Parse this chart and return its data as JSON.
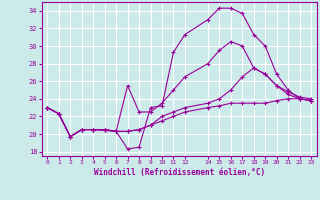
{
  "xlabel": "Windchill (Refroidissement éolien,°C)",
  "bg_color": "#cceaea",
  "grid_color": "#ffffff",
  "line_color": "#990099",
  "xlim": [
    -0.5,
    23.5
  ],
  "ylim": [
    17.5,
    35.0
  ],
  "xticks": [
    0,
    1,
    2,
    3,
    4,
    5,
    6,
    7,
    8,
    9,
    10,
    11,
    12,
    14,
    15,
    16,
    17,
    18,
    19,
    20,
    21,
    22,
    23
  ],
  "yticks": [
    18,
    20,
    22,
    24,
    26,
    28,
    30,
    32,
    34
  ],
  "curve1_x": [
    0,
    1,
    2,
    3,
    4,
    5,
    6,
    7,
    8,
    9,
    10,
    11,
    12,
    14,
    15,
    16,
    17,
    18,
    19,
    20,
    21,
    22,
    23
  ],
  "curve1_y": [
    23.0,
    22.3,
    19.7,
    20.5,
    20.5,
    20.4,
    20.3,
    18.3,
    18.5,
    23.0,
    23.2,
    29.3,
    31.3,
    33.0,
    34.3,
    34.3,
    33.7,
    31.3,
    30.0,
    26.8,
    25.0,
    24.0,
    23.8
  ],
  "curve2_x": [
    0,
    1,
    2,
    3,
    4,
    5,
    6,
    7,
    8,
    9,
    10,
    11,
    12,
    14,
    15,
    16,
    17,
    18,
    19,
    20,
    21,
    22,
    23
  ],
  "curve2_y": [
    23.0,
    22.3,
    19.7,
    20.5,
    20.5,
    20.5,
    20.3,
    25.5,
    22.5,
    22.5,
    23.5,
    25.0,
    26.5,
    28.0,
    29.5,
    30.5,
    30.0,
    27.5,
    26.8,
    25.5,
    24.5,
    24.0,
    23.8
  ],
  "curve3_x": [
    0,
    1,
    2,
    3,
    4,
    5,
    6,
    7,
    8,
    9,
    10,
    11,
    12,
    14,
    15,
    16,
    17,
    18,
    19,
    20,
    21,
    22,
    23
  ],
  "curve3_y": [
    23.0,
    22.3,
    19.7,
    20.5,
    20.5,
    20.5,
    20.3,
    20.3,
    20.5,
    21.0,
    21.5,
    22.0,
    22.5,
    23.0,
    23.2,
    23.5,
    23.5,
    23.5,
    23.5,
    23.8,
    24.0,
    24.0,
    23.8
  ],
  "curve4_x": [
    0,
    1,
    2,
    3,
    4,
    5,
    6,
    7,
    8,
    9,
    10,
    11,
    12,
    14,
    15,
    16,
    17,
    18,
    19,
    20,
    21,
    22,
    23
  ],
  "curve4_y": [
    23.0,
    22.3,
    19.7,
    20.5,
    20.5,
    20.5,
    20.3,
    20.3,
    20.5,
    21.0,
    22.0,
    22.5,
    23.0,
    23.5,
    24.0,
    25.0,
    26.5,
    27.5,
    26.8,
    25.5,
    24.8,
    24.2,
    24.0
  ]
}
